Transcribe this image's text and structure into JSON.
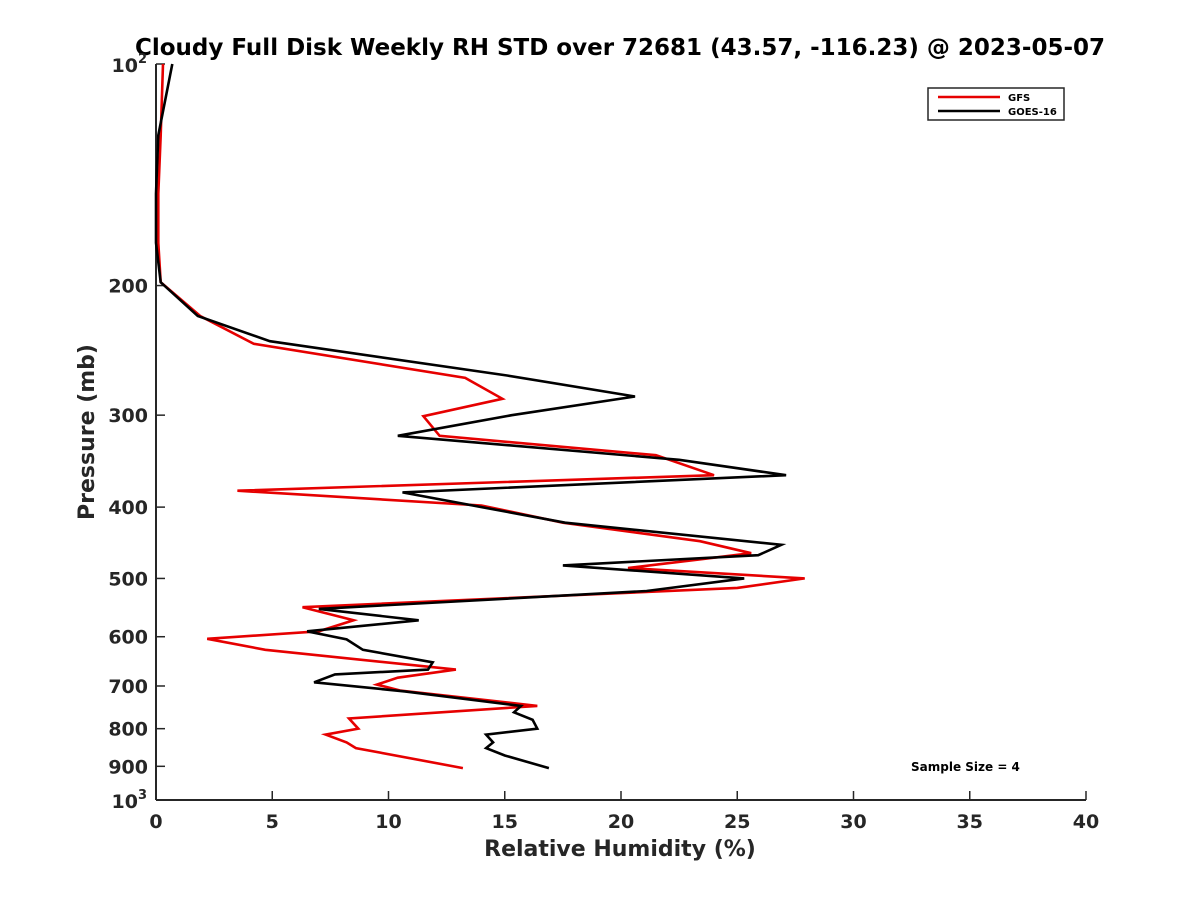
{
  "chart_data": {
    "type": "line",
    "title": "Cloudy Full Disk Weekly RH STD over 72681 (43.57, -116.23) @ 2023-05-07",
    "xlabel": "Relative Humidity (%)",
    "ylabel": "Pressure (mb)",
    "xlim": [
      0,
      40
    ],
    "ylim": [
      100,
      1000
    ],
    "y_scale": "log",
    "y_reversed": true,
    "grid": false,
    "legend_position": "top-right",
    "x_ticks": [
      "0",
      "5",
      "10",
      "15",
      "20",
      "25",
      "30",
      "35",
      "40"
    ],
    "y_ticks": [
      {
        "value": 100,
        "base": "10",
        "exp": "2"
      },
      {
        "value": 200,
        "label": "200"
      },
      {
        "value": 300,
        "label": "300"
      },
      {
        "value": 400,
        "label": "400"
      },
      {
        "value": 500,
        "label": "500"
      },
      {
        "value": 600,
        "label": "600"
      },
      {
        "value": 700,
        "label": "700"
      },
      {
        "value": 800,
        "label": "800"
      },
      {
        "value": 900,
        "label": "900"
      },
      {
        "value": 1000,
        "base": "10",
        "exp": "3"
      }
    ],
    "annotation": "Sample Size = 4",
    "series": [
      {
        "name": "GFS",
        "color": "#e60000",
        "points": [
          [
            0.3,
            100
          ],
          [
            0.2,
            125
          ],
          [
            0.1,
            150
          ],
          [
            0.1,
            175
          ],
          [
            0.2,
            198
          ],
          [
            1.9,
            220
          ],
          [
            4.2,
            240
          ],
          [
            13.3,
            267
          ],
          [
            14.9,
            285
          ],
          [
            11.5,
            301
          ],
          [
            12.2,
            320
          ],
          [
            21.5,
            340
          ],
          [
            24.0,
            362
          ],
          [
            3.5,
            380
          ],
          [
            14.0,
            398
          ],
          [
            17.5,
            420
          ],
          [
            23.4,
            445
          ],
          [
            25.6,
            462
          ],
          [
            20.3,
            484
          ],
          [
            27.9,
            500
          ],
          [
            25.0,
            515
          ],
          [
            6.3,
            547
          ],
          [
            8.5,
            570
          ],
          [
            7.0,
            590
          ],
          [
            2.2,
            604
          ],
          [
            4.7,
            625
          ],
          [
            12.9,
            665
          ],
          [
            10.4,
            682
          ],
          [
            9.5,
            697
          ],
          [
            10.5,
            710
          ],
          [
            16.4,
            745
          ],
          [
            8.3,
            775
          ],
          [
            8.7,
            800
          ],
          [
            7.3,
            815
          ],
          [
            8.2,
            835
          ],
          [
            8.6,
            850
          ],
          [
            13.2,
            905
          ]
        ]
      },
      {
        "name": "GOES-16",
        "color": "#000000",
        "points": [
          [
            0.7,
            100
          ],
          [
            0.1,
            125
          ],
          [
            0.0,
            150
          ],
          [
            0.0,
            175
          ],
          [
            0.2,
            198
          ],
          [
            1.8,
            220
          ],
          [
            4.9,
            238
          ],
          [
            15.1,
            265
          ],
          [
            20.6,
            283
          ],
          [
            15.3,
            300
          ],
          [
            10.4,
            320
          ],
          [
            22.5,
            345
          ],
          [
            27.1,
            362
          ],
          [
            10.6,
            382
          ],
          [
            17.6,
            420
          ],
          [
            26.9,
            450
          ],
          [
            25.9,
            465
          ],
          [
            17.5,
            480
          ],
          [
            25.3,
            500
          ],
          [
            21.1,
            520
          ],
          [
            7.0,
            550
          ],
          [
            11.3,
            570
          ],
          [
            6.5,
            590
          ],
          [
            8.2,
            605
          ],
          [
            8.9,
            625
          ],
          [
            11.9,
            650
          ],
          [
            11.7,
            665
          ],
          [
            7.7,
            675
          ],
          [
            6.8,
            692
          ],
          [
            10.7,
            712
          ],
          [
            15.7,
            745
          ],
          [
            15.4,
            760
          ],
          [
            16.2,
            778
          ],
          [
            16.4,
            800
          ],
          [
            14.2,
            815
          ],
          [
            14.5,
            835
          ],
          [
            14.2,
            850
          ],
          [
            15.0,
            870
          ],
          [
            16.9,
            905
          ]
        ]
      }
    ]
  }
}
